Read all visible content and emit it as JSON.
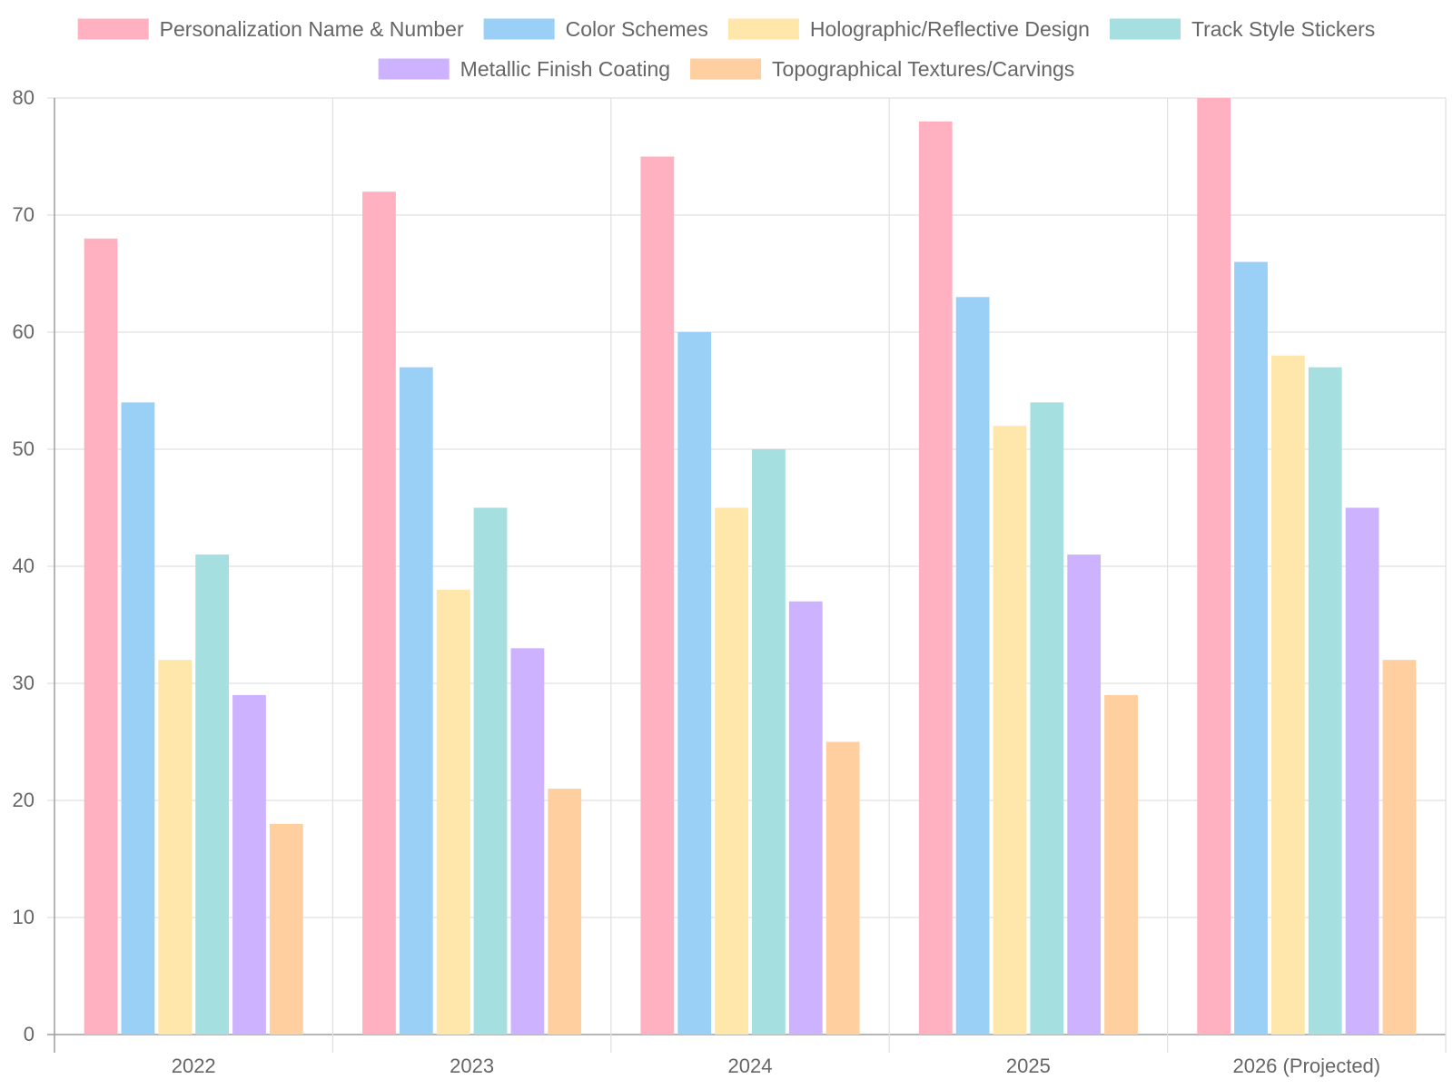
{
  "chart_data": {
    "type": "bar",
    "title": "",
    "xlabel": "",
    "ylabel": "",
    "categories": [
      "2022",
      "2023",
      "2024",
      "2025",
      "2026 (Projected)"
    ],
    "ylim": [
      0,
      80
    ],
    "yticks": [
      0,
      10,
      20,
      30,
      40,
      50,
      60,
      70,
      80
    ],
    "grid": true,
    "legend_position": "top",
    "series": [
      {
        "name": "Personalization Name & Number",
        "color": "#ffb1c1",
        "values": [
          68,
          72,
          75,
          78,
          80
        ]
      },
      {
        "name": "Color Schemes",
        "color": "#9ad0f5",
        "values": [
          54,
          57,
          60,
          63,
          66
        ]
      },
      {
        "name": "Holographic/Reflective Design",
        "color": "#ffe6aa",
        "values": [
          32,
          38,
          45,
          52,
          58
        ]
      },
      {
        "name": "Track Style Stickers",
        "color": "#a5dfdf",
        "values": [
          41,
          45,
          50,
          54,
          57
        ]
      },
      {
        "name": "Metallic Finish Coating",
        "color": "#ccb2ff",
        "values": [
          29,
          33,
          37,
          41,
          45
        ]
      },
      {
        "name": "Topographical Textures/Carvings",
        "color": "#ffcf9f",
        "values": [
          18,
          21,
          25,
          29,
          32
        ]
      }
    ]
  }
}
